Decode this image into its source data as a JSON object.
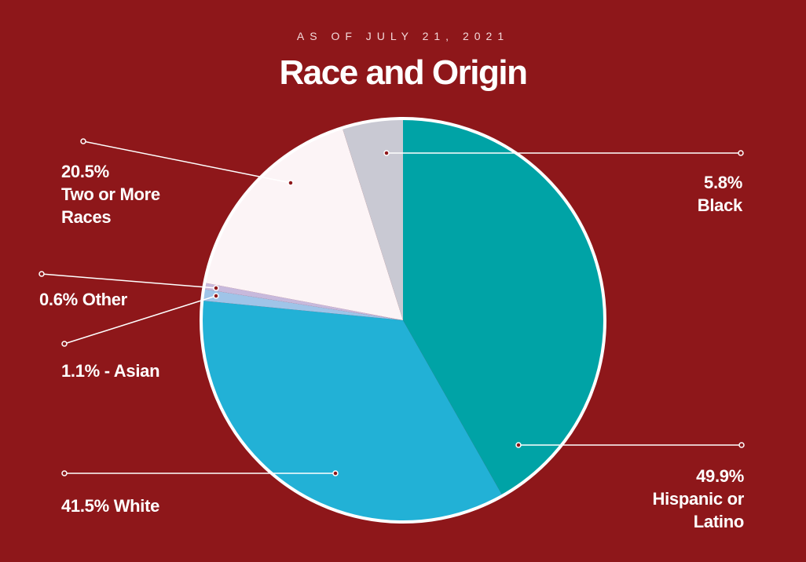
{
  "chart_data": {
    "type": "pie",
    "subtitle": "AS OF JULY 21, 2021",
    "title": "Race and Origin",
    "categories": [
      "Hispanic or Latino",
      "White",
      "Asian",
      "Other",
      "Two or More Races",
      "Black"
    ],
    "values": [
      49.9,
      41.5,
      1.1,
      0.6,
      20.5,
      5.8
    ],
    "value_labels": [
      "49.9%",
      "41.5%",
      "1.1% -",
      "0.6%",
      "20.5%",
      "5.8%"
    ],
    "colors": [
      "#00a3a6",
      "#22b1d6",
      "#9fc4e8",
      "#c7b9dc",
      "#fcf4f6",
      "#c9c9d3"
    ]
  }
}
